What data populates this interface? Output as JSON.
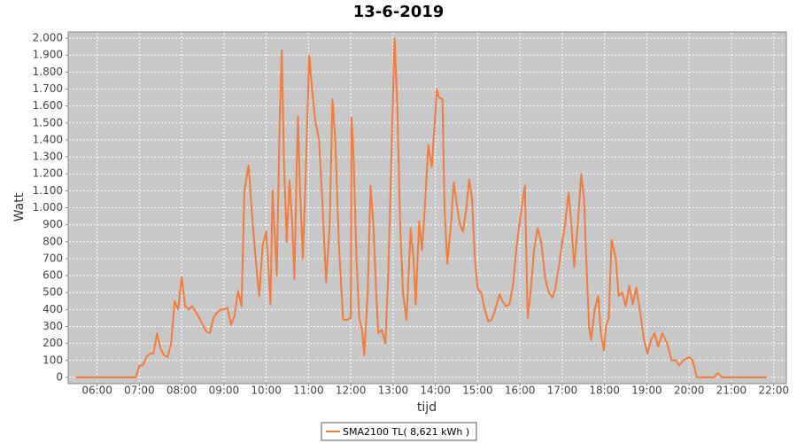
{
  "chart_data": {
    "type": "line",
    "title": "13-6-2019",
    "x_label": "tijd",
    "y_label": "Watt",
    "xlim": [
      "05:19",
      "22:18"
    ],
    "xticks": [
      "06:00",
      "07:00",
      "08:00",
      "09:00",
      "10:00",
      "11:00",
      "12:00",
      "13:00",
      "14:00",
      "15:00",
      "16:00",
      "17:00",
      "18:00",
      "19:00",
      "20:00",
      "21:00",
      "22:00"
    ],
    "ylim": [
      -37,
      2037
    ],
    "yticks": [
      0,
      100,
      200,
      300,
      400,
      500,
      600,
      700,
      800,
      900,
      {
        "value": 1000,
        "label": "1.000"
      },
      {
        "value": 1100,
        "label": "1.100"
      },
      {
        "value": 1200,
        "label": "1.200"
      },
      {
        "value": 1300,
        "label": "1.300"
      },
      {
        "value": 1400,
        "label": "1.400"
      },
      {
        "value": 1500,
        "label": "1.500"
      },
      {
        "value": 1600,
        "label": "1.600"
      },
      {
        "value": 1700,
        "label": "1.700"
      },
      {
        "value": 1800,
        "label": "1.800"
      },
      {
        "value": 1900,
        "label": "1.900"
      },
      {
        "value": 2000,
        "label": "2.000"
      }
    ],
    "grid": true,
    "legend": "bottom",
    "x": [
      "05:30",
      "06:45",
      "06:55",
      "07:00",
      "07:05",
      "07:10",
      "07:15",
      "07:20",
      "07:25",
      "07:30",
      "07:35",
      "07:40",
      "07:45",
      "07:50",
      "07:55",
      "08:00",
      "08:05",
      "08:10",
      "08:15",
      "08:25",
      "08:35",
      "08:40",
      "08:45",
      "08:50",
      "08:55",
      "09:00",
      "09:05",
      "09:10",
      "09:15",
      "09:20",
      "09:25",
      "09:29",
      "09:35",
      "09:40",
      "09:45",
      "09:50",
      "09:55",
      "10:00",
      "10:06",
      "10:09",
      "10:15",
      "10:19",
      "10:22",
      "10:25",
      "10:29",
      "10:33",
      "10:37",
      "10:40",
      "10:43",
      "10:45",
      "10:48",
      "10:52",
      "10:56",
      "11:01",
      "11:05",
      "11:10",
      "11:15",
      "11:20",
      "11:25",
      "11:30",
      "11:34",
      "11:38",
      "11:43",
      "11:49",
      "11:55",
      "12:00",
      "12:01",
      "12:04",
      "12:08",
      "12:12",
      "12:16",
      "12:19",
      "12:24",
      "12:28",
      "12:32",
      "12:36",
      "12:39",
      "12:44",
      "12:49",
      "12:53",
      "12:57",
      "13:02",
      "13:06",
      "13:10",
      "13:14",
      "13:19",
      "13:25",
      "13:29",
      "13:32",
      "13:37",
      "13:41",
      "13:45",
      "13:50",
      "13:55",
      "13:59",
      "14:02",
      "14:05",
      "14:10",
      "14:13",
      "14:17",
      "14:22",
      "14:26",
      "14:31",
      "14:35",
      "14:39",
      "14:44",
      "14:48",
      "14:52",
      "14:56",
      "15:00",
      "15:05",
      "15:10",
      "15:15",
      "15:20",
      "15:25",
      "15:31",
      "15:35",
      "15:40",
      "15:45",
      "15:50",
      "15:56",
      "16:04",
      "16:07",
      "16:11",
      "16:15",
      "16:20",
      "16:25",
      "16:30",
      "16:36",
      "16:41",
      "16:46",
      "16:50",
      "16:55",
      "17:00",
      "17:04",
      "17:09",
      "17:13",
      "17:17",
      "17:22",
      "17:27",
      "17:31",
      "17:34",
      "17:38",
      "17:41",
      "17:46",
      "17:51",
      "17:55",
      "17:59",
      "18:02",
      "18:06",
      "18:10",
      "18:16",
      "18:20",
      "18:25",
      "18:30",
      "18:35",
      "18:40",
      "18:45",
      "18:50",
      "18:56",
      "19:01",
      "19:06",
      "19:11",
      "19:16",
      "19:22",
      "19:29",
      "19:35",
      "19:41",
      "19:46",
      "19:52",
      "20:00",
      "20:05",
      "20:11",
      "20:35",
      "20:41",
      "20:47",
      "21:50"
    ],
    "series": [
      {
        "name": "SMA2100 TL( 8,621 kWh )",
        "color": "#f47b3c",
        "values": [
          0,
          0,
          0,
          70,
          70,
          120,
          140,
          140,
          260,
          170,
          130,
          120,
          200,
          450,
          400,
          590,
          420,
          400,
          420,
          350,
          270,
          260,
          350,
          380,
          400,
          400,
          410,
          310,
          360,
          510,
          420,
          1100,
          1250,
          950,
          700,
          480,
          780,
          860,
          430,
          1100,
          600,
          1500,
          1930,
          1300,
          800,
          1160,
          900,
          580,
          1200,
          1540,
          1100,
          700,
          1200,
          1900,
          1700,
          1500,
          1400,
          1000,
          560,
          900,
          1640,
          1400,
          800,
          340,
          340,
          350,
          1530,
          1300,
          700,
          350,
          280,
          130,
          500,
          1130,
          900,
          500,
          260,
          280,
          200,
          600,
          1200,
          2000,
          1600,
          900,
          500,
          340,
          880,
          700,
          430,
          920,
          750,
          1000,
          1370,
          1240,
          1500,
          1700,
          1650,
          1640,
          1000,
          670,
          900,
          1150,
          1000,
          900,
          860,
          1000,
          1170,
          1050,
          700,
          520,
          500,
          400,
          330,
          340,
          400,
          490,
          450,
          420,
          430,
          540,
          800,
          1050,
          1130,
          350,
          500,
          750,
          880,
          800,
          580,
          500,
          470,
          520,
          650,
          800,
          900,
          1090,
          900,
          650,
          900,
          1200,
          1050,
          700,
          300,
          220,
          400,
          480,
          250,
          160,
          300,
          350,
          810,
          700,
          480,
          500,
          420,
          540,
          430,
          530,
          400,
          220,
          140,
          220,
          260,
          180,
          260,
          200,
          100,
          100,
          70,
          100,
          120,
          100,
          0,
          0,
          25,
          0,
          0
        ]
      }
    ]
  }
}
